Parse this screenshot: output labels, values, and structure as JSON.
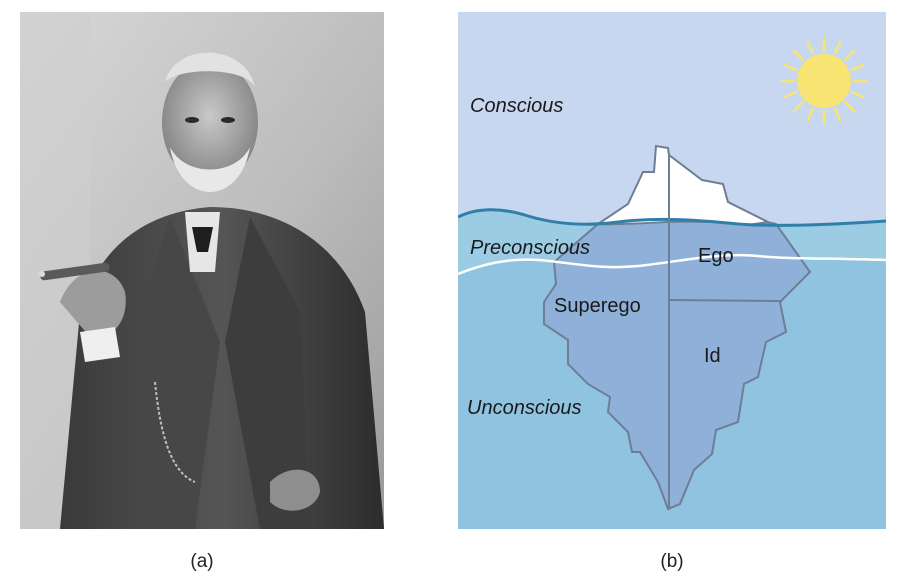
{
  "panel_a": {
    "caption": "(a)",
    "icon": "portrait-photo"
  },
  "panel_b": {
    "caption": "(b)",
    "levels": {
      "conscious": "Conscious",
      "preconscious": "Preconscious",
      "unconscious": "Unconscious"
    },
    "parts": {
      "ego": "Ego",
      "superego": "Superego",
      "id": "Id"
    },
    "icon": "sun-icon",
    "colors": {
      "sky": "#c7d7ef",
      "water": "#8fc3df",
      "water_line": "#2f7fa8",
      "iceberg_above": "#ffffff",
      "iceberg_below": "#8fb0d9",
      "iceberg_outline": "#6d7e95",
      "sun": "#f7e472"
    }
  }
}
